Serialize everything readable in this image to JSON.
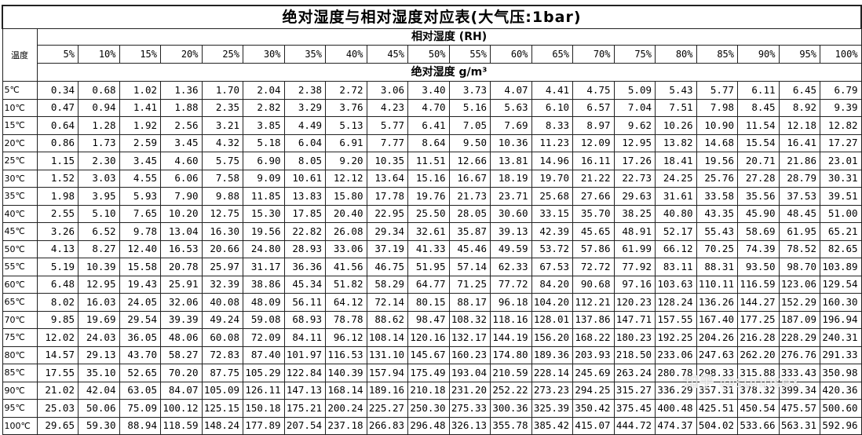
{
  "title": "绝对湿度与相对湿度对应表(大气压:1bar)",
  "rh_header": "相对湿度 (RH)",
  "temp_header": "温度",
  "unit_header": "绝对湿度 g/m³",
  "rh_columns": [
    "5%",
    "10%",
    "15%",
    "20%",
    "25%",
    "30%",
    "35%",
    "40%",
    "45%",
    "50%",
    "55%",
    "60%",
    "65%",
    "70%",
    "75%",
    "80%",
    "85%",
    "90%",
    "95%",
    "100%"
  ],
  "rows": [
    {
      "temp": "5℃",
      "values": [
        "0.34",
        "0.68",
        "1.02",
        "1.36",
        "1.70",
        "2.04",
        "2.38",
        "2.72",
        "3.06",
        "3.40",
        "3.73",
        "4.07",
        "4.41",
        "4.75",
        "5.09",
        "5.43",
        "5.77",
        "6.11",
        "6.45",
        "6.79"
      ]
    },
    {
      "temp": "10℃",
      "values": [
        "0.47",
        "0.94",
        "1.41",
        "1.88",
        "2.35",
        "2.82",
        "3.29",
        "3.76",
        "4.23",
        "4.70",
        "5.16",
        "5.63",
        "6.10",
        "6.57",
        "7.04",
        "7.51",
        "7.98",
        "8.45",
        "8.92",
        "9.39"
      ]
    },
    {
      "temp": "15℃",
      "values": [
        "0.64",
        "1.28",
        "1.92",
        "2.56",
        "3.21",
        "3.85",
        "4.49",
        "5.13",
        "5.77",
        "6.41",
        "7.05",
        "7.69",
        "8.33",
        "8.97",
        "9.62",
        "10.26",
        "10.90",
        "11.54",
        "12.18",
        "12.82"
      ]
    },
    {
      "temp": "20℃",
      "values": [
        "0.86",
        "1.73",
        "2.59",
        "3.45",
        "4.32",
        "5.18",
        "6.04",
        "6.91",
        "7.77",
        "8.64",
        "9.50",
        "10.36",
        "11.23",
        "12.09",
        "12.95",
        "13.82",
        "14.68",
        "15.54",
        "16.41",
        "17.27"
      ]
    },
    {
      "temp": "25℃",
      "values": [
        "1.15",
        "2.30",
        "3.45",
        "4.60",
        "5.75",
        "6.90",
        "8.05",
        "9.20",
        "10.35",
        "11.51",
        "12.66",
        "13.81",
        "14.96",
        "16.11",
        "17.26",
        "18.41",
        "19.56",
        "20.71",
        "21.86",
        "23.01"
      ]
    },
    {
      "temp": "30℃",
      "values": [
        "1.52",
        "3.03",
        "4.55",
        "6.06",
        "7.58",
        "9.09",
        "10.61",
        "12.12",
        "13.64",
        "15.16",
        "16.67",
        "18.19",
        "19.70",
        "21.22",
        "22.73",
        "24.25",
        "25.76",
        "27.28",
        "28.79",
        "30.31"
      ]
    },
    {
      "temp": "35℃",
      "values": [
        "1.98",
        "3.95",
        "5.93",
        "7.90",
        "9.88",
        "11.85",
        "13.83",
        "15.80",
        "17.78",
        "19.76",
        "21.73",
        "23.71",
        "25.68",
        "27.66",
        "29.63",
        "31.61",
        "33.58",
        "35.56",
        "37.53",
        "39.51"
      ]
    },
    {
      "temp": "40℃",
      "values": [
        "2.55",
        "5.10",
        "7.65",
        "10.20",
        "12.75",
        "15.30",
        "17.85",
        "20.40",
        "22.95",
        "25.50",
        "28.05",
        "30.60",
        "33.15",
        "35.70",
        "38.25",
        "40.80",
        "43.35",
        "45.90",
        "48.45",
        "51.00"
      ]
    },
    {
      "temp": "45℃",
      "values": [
        "3.26",
        "6.52",
        "9.78",
        "13.04",
        "16.30",
        "19.56",
        "22.82",
        "26.08",
        "29.34",
        "32.61",
        "35.87",
        "39.13",
        "42.39",
        "45.65",
        "48.91",
        "52.17",
        "55.43",
        "58.69",
        "61.95",
        "65.21"
      ]
    },
    {
      "temp": "50℃",
      "values": [
        "4.13",
        "8.27",
        "12.40",
        "16.53",
        "20.66",
        "24.80",
        "28.93",
        "33.06",
        "37.19",
        "41.33",
        "45.46",
        "49.59",
        "53.72",
        "57.86",
        "61.99",
        "66.12",
        "70.25",
        "74.39",
        "78.52",
        "82.65"
      ]
    },
    {
      "temp": "55℃",
      "values": [
        "5.19",
        "10.39",
        "15.58",
        "20.78",
        "25.97",
        "31.17",
        "36.36",
        "41.56",
        "46.75",
        "51.95",
        "57.14",
        "62.33",
        "67.53",
        "72.72",
        "77.92",
        "83.11",
        "88.31",
        "93.50",
        "98.70",
        "103.89"
      ]
    },
    {
      "temp": "60℃",
      "values": [
        "6.48",
        "12.95",
        "19.43",
        "25.91",
        "32.39",
        "38.86",
        "45.34",
        "51.82",
        "58.29",
        "64.77",
        "71.25",
        "77.72",
        "84.20",
        "90.68",
        "97.16",
        "103.63",
        "110.11",
        "116.59",
        "123.06",
        "129.54"
      ]
    },
    {
      "temp": "65℃",
      "values": [
        "8.02",
        "16.03",
        "24.05",
        "32.06",
        "40.08",
        "48.09",
        "56.11",
        "64.12",
        "72.14",
        "80.15",
        "88.17",
        "96.18",
        "104.20",
        "112.21",
        "120.23",
        "128.24",
        "136.26",
        "144.27",
        "152.29",
        "160.30"
      ]
    },
    {
      "temp": "70℃",
      "values": [
        "9.85",
        "19.69",
        "29.54",
        "39.39",
        "49.24",
        "59.08",
        "68.93",
        "78.78",
        "88.62",
        "98.47",
        "108.32",
        "118.16",
        "128.01",
        "137.86",
        "147.71",
        "157.55",
        "167.40",
        "177.25",
        "187.09",
        "196.94"
      ]
    },
    {
      "temp": "75℃",
      "values": [
        "12.02",
        "24.03",
        "36.05",
        "48.06",
        "60.08",
        "72.09",
        "84.11",
        "96.12",
        "108.14",
        "120.16",
        "132.17",
        "144.19",
        "156.20",
        "168.22",
        "180.23",
        "192.25",
        "204.26",
        "216.28",
        "228.29",
        "240.31"
      ]
    },
    {
      "temp": "80℃",
      "values": [
        "14.57",
        "29.13",
        "43.70",
        "58.27",
        "72.83",
        "87.40",
        "101.97",
        "116.53",
        "131.10",
        "145.67",
        "160.23",
        "174.80",
        "189.36",
        "203.93",
        "218.50",
        "233.06",
        "247.63",
        "262.20",
        "276.76",
        "291.33"
      ]
    },
    {
      "temp": "85℃",
      "values": [
        "17.55",
        "35.10",
        "52.65",
        "70.20",
        "87.75",
        "105.29",
        "122.84",
        "140.39",
        "157.94",
        "175.49",
        "193.04",
        "210.59",
        "228.14",
        "245.69",
        "263.24",
        "280.78",
        "298.33",
        "315.88",
        "333.43",
        "350.98"
      ]
    },
    {
      "temp": "90℃",
      "values": [
        "21.02",
        "42.04",
        "63.05",
        "84.07",
        "105.09",
        "126.11",
        "147.13",
        "168.14",
        "189.16",
        "210.18",
        "231.20",
        "252.22",
        "273.23",
        "294.25",
        "315.27",
        "336.29",
        "357.31",
        "378.32",
        "399.34",
        "420.36"
      ]
    },
    {
      "temp": "95℃",
      "values": [
        "25.03",
        "50.06",
        "75.09",
        "100.12",
        "125.15",
        "150.18",
        "175.21",
        "200.24",
        "225.27",
        "250.30",
        "275.33",
        "300.36",
        "325.39",
        "350.42",
        "375.45",
        "400.48",
        "425.51",
        "450.54",
        "475.57",
        "500.60"
      ]
    },
    {
      "temp": "100℃",
      "values": [
        "29.65",
        "59.30",
        "88.94",
        "118.59",
        "148.24",
        "177.89",
        "207.54",
        "237.18",
        "266.83",
        "296.48",
        "326.13",
        "355.78",
        "385.42",
        "415.07",
        "444.72",
        "474.37",
        "504.02",
        "533.66",
        "563.31",
        "592.96"
      ]
    }
  ],
  "watermark": "知乎 @sunnsex"
}
